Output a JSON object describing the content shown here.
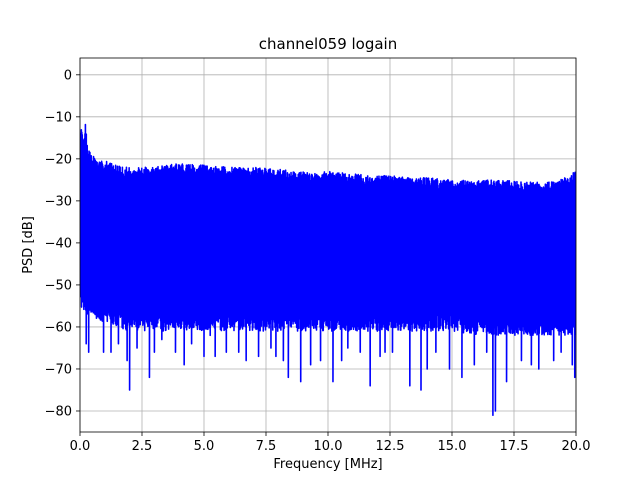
{
  "chart_data": {
    "type": "line",
    "title": "channel059 logain",
    "xlabel": "Frequency [MHz]",
    "ylabel": "PSD [dB]",
    "xlim": [
      0,
      20
    ],
    "ylim": [
      -85,
      4
    ],
    "xticks": [
      0,
      2.5,
      5,
      7.5,
      10,
      12.5,
      15,
      17.5,
      20
    ],
    "xtick_labels": [
      "0.0",
      "2.5",
      "5.0",
      "7.5",
      "10.0",
      "12.5",
      "15.0",
      "17.5",
      "20.0"
    ],
    "yticks": [
      0,
      -10,
      -20,
      -30,
      -40,
      -50,
      -60,
      -70,
      -80
    ],
    "ytick_labels": [
      "0",
      "−10",
      "−20",
      "−30",
      "−40",
      "−50",
      "−60",
      "−70",
      "−80"
    ],
    "grid": true,
    "series": [
      {
        "color": "#0000ff",
        "upper_envelope": {
          "x": [
            0.0,
            0.05,
            0.15,
            0.22,
            0.3,
            0.45,
            0.6,
            0.8,
            1.0,
            1.5,
            2.0,
            3.0,
            4.0,
            5.0,
            6.0,
            7.0,
            8.0,
            9.0,
            10.0,
            11.0,
            12.0,
            13.0,
            14.0,
            15.0,
            16.0,
            17.0,
            18.0,
            19.0,
            19.8,
            20.0
          ],
          "y": [
            -13,
            -12,
            -16,
            -11.5,
            -17,
            -19,
            -19.5,
            -20,
            -20.5,
            -21.5,
            -22,
            -22,
            -21,
            -21.5,
            -22,
            -22,
            -22.5,
            -23,
            -23,
            -23.5,
            -24,
            -24,
            -24.5,
            -25,
            -25,
            -25,
            -25.5,
            -25.5,
            -24,
            -22.5
          ]
        },
        "lower_envelope": {
          "x": [
            0.0,
            0.3,
            0.6,
            1.0,
            1.5,
            2.0,
            3.0,
            4.0,
            5.0,
            6.0,
            7.0,
            8.0,
            9.0,
            10.0,
            11.0,
            12.0,
            13.0,
            14.0,
            15.0,
            16.0,
            17.0,
            18.0,
            19.0,
            20.0
          ],
          "y": [
            -55,
            -57,
            -58,
            -59,
            -60,
            -61,
            -61,
            -61,
            -61,
            -61,
            -61,
            -61,
            -61,
            -61,
            -61,
            -61,
            -61,
            -61,
            -61,
            -62,
            -62,
            -62,
            -62,
            -62
          ]
        },
        "dips": {
          "x": [
            0.25,
            0.35,
            0.95,
            1.25,
            1.55,
            1.9,
            2.0,
            2.3,
            2.8,
            3.0,
            3.3,
            3.85,
            4.2,
            4.5,
            5.0,
            5.25,
            5.45,
            5.9,
            6.4,
            6.7,
            7.2,
            7.7,
            7.9,
            8.2,
            8.4,
            8.9,
            9.3,
            9.7,
            10.2,
            10.55,
            10.8,
            11.3,
            11.7,
            12.1,
            12.3,
            12.6,
            13.3,
            13.75,
            14.0,
            14.35,
            14.9,
            15.4,
            15.9,
            16.4,
            16.65,
            16.75,
            17.2,
            17.8,
            18.2,
            18.5,
            19.1,
            19.4,
            19.85,
            19.95
          ],
          "y": [
            -64,
            -66,
            -66,
            -66,
            -64,
            -68,
            -75,
            -65,
            -72,
            -66,
            -63,
            -66,
            -69,
            -64,
            -67,
            -62,
            -67,
            -66,
            -66,
            -68,
            -67,
            -65,
            -67,
            -68,
            -72,
            -73,
            -69,
            -68,
            -73,
            -68,
            -65,
            -66,
            -74,
            -67,
            -66,
            -66,
            -74,
            -75,
            -70,
            -66,
            -70,
            -72,
            -69,
            -66,
            -81,
            -80,
            -73,
            -68,
            -69,
            -70,
            -68,
            -66,
            -69,
            -72
          ]
        }
      }
    ]
  }
}
